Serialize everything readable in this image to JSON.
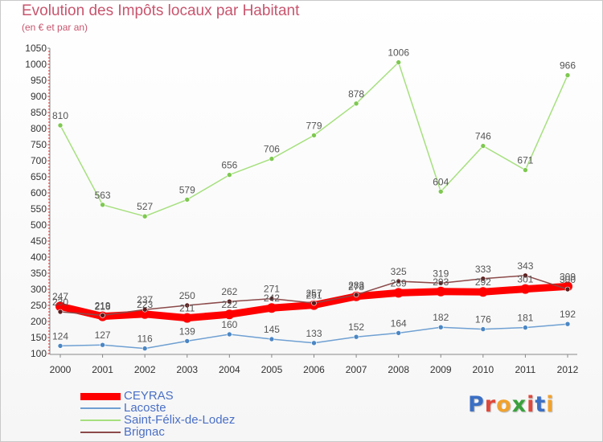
{
  "header": {
    "title": "Evolution des Impôts locaux par Habitant",
    "subtitle": "(en € et par an)"
  },
  "logo": {
    "text": "Proxiti",
    "letters": [
      {
        "ch": "P",
        "color": "#3b6fc4"
      },
      {
        "ch": "r",
        "color": "#e0483b"
      },
      {
        "ch": "o",
        "color": "#f0a22e"
      },
      {
        "ch": "x",
        "color": "#3aa13c"
      },
      {
        "ch": "i",
        "color": "#e0483b"
      },
      {
        "ch": "t",
        "color": "#3b6fc4"
      },
      {
        "ch": "i",
        "color": "#f0a22e"
      }
    ]
  },
  "chart_data": {
    "type": "line",
    "title": "Evolution des Impôts locaux par Habitant",
    "subtitle": "(en € et par an)",
    "xlabel": "",
    "ylabel": "",
    "x": [
      "2000",
      "2001",
      "2002",
      "2003",
      "2004",
      "2005",
      "2006",
      "2007",
      "2008",
      "2009",
      "2010",
      "2011",
      "2012"
    ],
    "ylim": [
      100,
      1050
    ],
    "yticks": [
      100,
      150,
      200,
      250,
      300,
      350,
      400,
      450,
      500,
      550,
      600,
      650,
      700,
      750,
      800,
      850,
      900,
      950,
      1000,
      1050
    ],
    "grid": false,
    "legend_position": "bottom-left",
    "series": [
      {
        "name": "CEYRAS",
        "color": "#ff0000",
        "marker_color": "#ff0000",
        "line_width": 9,
        "values": [
          247,
          216,
          223,
          211,
          222,
          242,
          251,
          278,
          289,
          293,
          292,
          301,
          309
        ]
      },
      {
        "name": "Lacoste",
        "color": "#6fa0d2",
        "marker_color": "#4a86c4",
        "line_width": 1.5,
        "values": [
          124,
          127,
          116,
          139,
          160,
          145,
          133,
          152,
          164,
          182,
          176,
          181,
          192
        ]
      },
      {
        "name": "Saint-Félix-de-Lodez",
        "color": "#a6e07e",
        "marker_color": "#7ec850",
        "line_width": 1.5,
        "values": [
          810,
          563,
          527,
          579,
          656,
          706,
          779,
          878,
          1006,
          604,
          746,
          671,
          966
        ]
      },
      {
        "name": "Brignac",
        "color": "#8c4a4a",
        "marker_color": "#5c1a1a",
        "line_width": 1.5,
        "values": [
          230,
          219,
          237,
          250,
          262,
          271,
          257,
          283,
          325,
          319,
          333,
          343,
          300
        ]
      }
    ]
  }
}
